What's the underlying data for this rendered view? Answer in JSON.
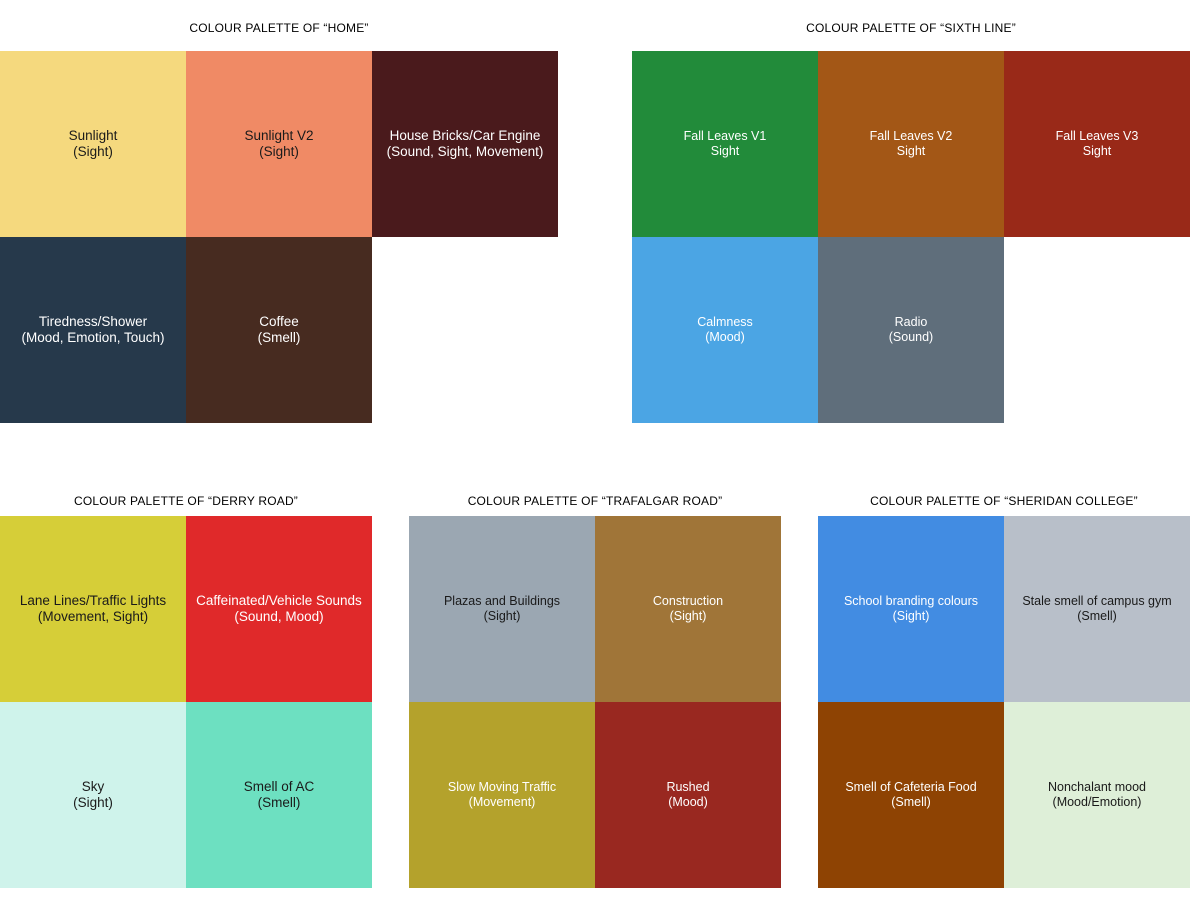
{
  "palettes": [
    {
      "title": "COLOUR PALETTE OF “HOME”",
      "swatches": [
        {
          "line1": "Sunlight",
          "line2": "(Sight)",
          "color": "#F5D97E",
          "text_color": "#1a1a1a"
        },
        {
          "line1": "Sunlight V2",
          "line2": "(Sight)",
          "color": "#F08A65",
          "text_color": "#1a1a1a"
        },
        {
          "line1": "House Bricks/Car Engine",
          "line2": "(Sound, Sight, Movement)",
          "color": "#4A1A1C",
          "text_color": "#ffffff"
        },
        {
          "line1": "Tiredness/Shower",
          "line2": "(Mood, Emotion, Touch)",
          "color": "#26394B",
          "text_color": "#ffffff"
        },
        {
          "line1": "Coffee",
          "line2": "(Smell)",
          "color": "#472B20",
          "text_color": "#ffffff"
        }
      ]
    },
    {
      "title": "COLOUR PALETTE OF “SIXTH LINE”",
      "swatches": [
        {
          "line1": "Fall Leaves V1",
          "line2": "Sight",
          "color": "#228B3A",
          "text_color": "#ffffff"
        },
        {
          "line1": "Fall Leaves V2",
          "line2": "Sight",
          "color": "#A35716",
          "text_color": "#ffffff"
        },
        {
          "line1": "Fall Leaves V3",
          "line2": "Sight",
          "color": "#992918",
          "text_color": "#ffffff"
        },
        {
          "line1": "Calmness",
          "line2": "(Mood)",
          "color": "#4BA5E4",
          "text_color": "#ffffff"
        },
        {
          "line1": "Radio",
          "line2": "(Sound)",
          "color": "#5F6E7B",
          "text_color": "#ffffff"
        }
      ]
    },
    {
      "title": "COLOUR PALETTE OF “DERRY ROAD”",
      "swatches": [
        {
          "line1": "Lane Lines/Traffic Lights",
          "line2": "(Movement, Sight)",
          "color": "#D6CE38",
          "text_color": "#1a1a1a"
        },
        {
          "line1": "Caffeinated/Vehicle Sounds",
          "line2": "(Sound, Mood)",
          "color": "#E0292A",
          "text_color": "#ffffff"
        },
        {
          "line1": "Sky",
          "line2": "(Sight)",
          "color": "#CFF3EB",
          "text_color": "#1a1a1a"
        },
        {
          "line1": "Smell of AC",
          "line2": "(Smell)",
          "color": "#6DE0C1",
          "text_color": "#1a1a1a"
        }
      ]
    },
    {
      "title": "COLOUR PALETTE OF “TRAFALGAR ROAD”",
      "swatches": [
        {
          "line1": "Plazas and Buildings",
          "line2": "(Sight)",
          "color": "#9BA7B2",
          "text_color": "#1a1a1a"
        },
        {
          "line1": "Construction",
          "line2": "(Sight)",
          "color": "#A07538",
          "text_color": "#ffffff"
        },
        {
          "line1": "Slow Moving Traffic",
          "line2": "(Movement)",
          "color": "#B4A22C",
          "text_color": "#ffffff"
        },
        {
          "line1": "Rushed",
          "line2": "(Mood)",
          "color": "#992820",
          "text_color": "#ffffff"
        }
      ]
    },
    {
      "title": "COLOUR PALETTE OF “SHERIDAN COLLEGE”",
      "swatches": [
        {
          "line1": "School branding colours",
          "line2": "(Sight)",
          "color": "#428CE2",
          "text_color": "#ffffff"
        },
        {
          "line1": "Stale smell of campus gym",
          "line2": "(Smell)",
          "color": "#B8BFC9",
          "text_color": "#1a1a1a"
        },
        {
          "line1": "Smell of Cafeteria Food",
          "line2": "(Smell)",
          "color": "#8E4303",
          "text_color": "#ffffff"
        },
        {
          "line1": "Nonchalant mood",
          "line2": "(Mood/Emotion)",
          "color": "#DEEFD8",
          "text_color": "#1a1a1a"
        }
      ]
    }
  ]
}
